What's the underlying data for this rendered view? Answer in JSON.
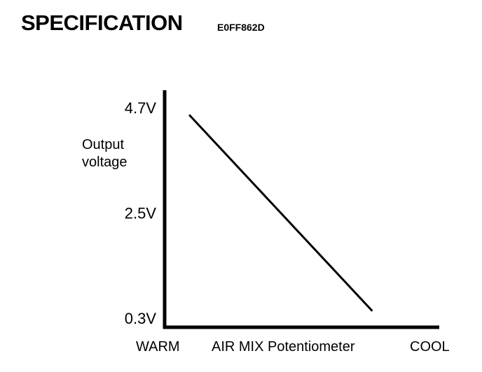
{
  "header": {
    "title": "SPECIFICATION",
    "code": "E0FF862D"
  },
  "chart_data": {
    "type": "line",
    "ylabel_lines": [
      "Output",
      "voltage"
    ],
    "y_ticks": [
      {
        "value": 4.7,
        "label": "4.7V"
      },
      {
        "value": 2.5,
        "label": "2.5V"
      },
      {
        "value": 0.3,
        "label": "0.3V"
      }
    ],
    "x_labels": {
      "start": "WARM",
      "middle": "AIR MIX Potentiometer",
      "end": "COOL"
    },
    "x_domain": [
      0,
      1
    ],
    "ylim": [
      0.3,
      4.7
    ],
    "grid": false,
    "series": [
      {
        "points": [
          {
            "x": 0.09,
            "y": 4.55
          },
          {
            "x": 0.76,
            "y": 0.45
          }
        ]
      }
    ]
  }
}
